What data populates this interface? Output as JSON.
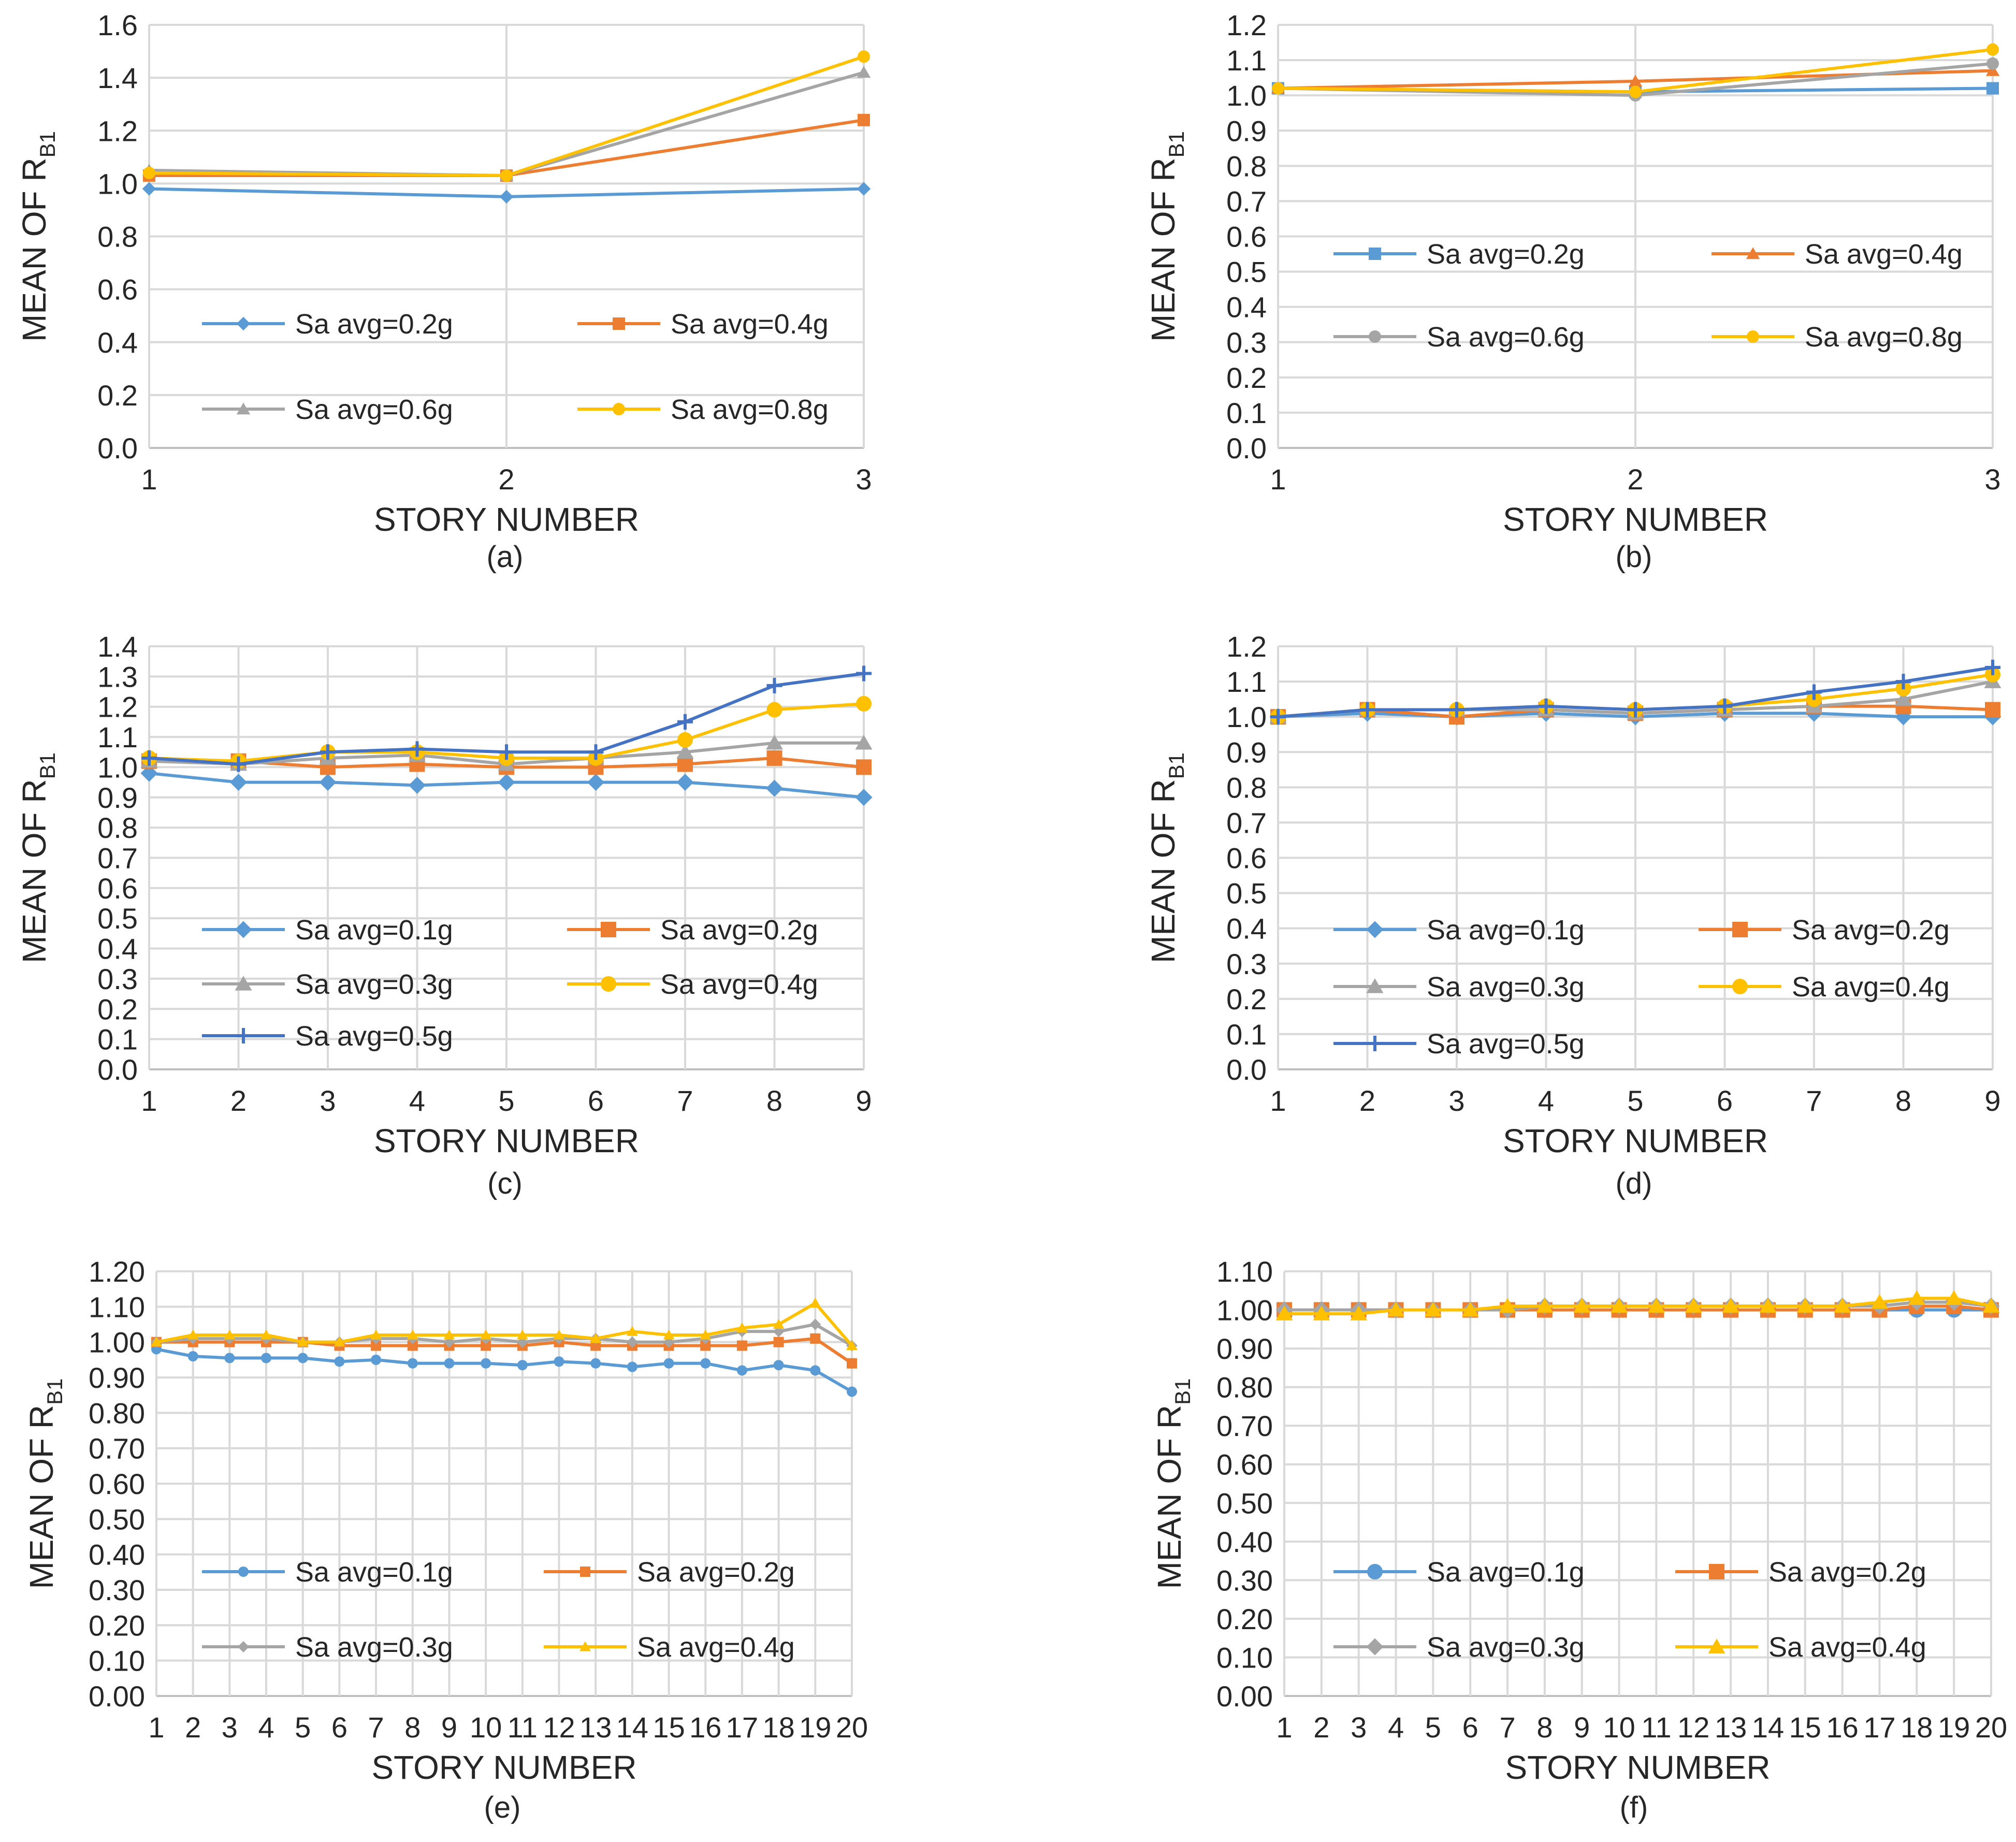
{
  "colors": {
    "blue": "#5b9bd5",
    "orange": "#ed7d31",
    "gray": "#a5a5a5",
    "yellow": "#ffc000",
    "darkblue": "#4472c4",
    "grid": "#d9d9d9",
    "text": "#262626"
  },
  "chart_data": [
    {
      "id": "a",
      "type": "line",
      "caption": "(a)",
      "xlabel": "STORY NUMBER",
      "ylabel": "MEAN OF R",
      "ylabel_sub": "B1",
      "x": [
        1,
        2,
        3
      ],
      "ylim": [
        0,
        1.6
      ],
      "ystep": 0.2,
      "ydecimals": 1,
      "series": [
        {
          "name": "Sa avg=0.2g",
          "color": "#5b9bd5",
          "marker": "diamond",
          "values": [
            0.98,
            0.95,
            0.98
          ]
        },
        {
          "name": "Sa avg=0.4g",
          "color": "#ed7d31",
          "marker": "square",
          "values": [
            1.03,
            1.03,
            1.24
          ]
        },
        {
          "name": "Sa avg=0.6g",
          "color": "#a5a5a5",
          "marker": "triangle",
          "values": [
            1.05,
            1.03,
            1.42
          ]
        },
        {
          "name": "Sa avg=0.8g",
          "color": "#ffc000",
          "marker": "circle",
          "values": [
            1.04,
            1.03,
            1.48
          ]
        }
      ]
    },
    {
      "id": "b",
      "type": "line",
      "caption": "(b)",
      "xlabel": "STORY NUMBER",
      "ylabel": "MEAN OF R",
      "ylabel_sub": "B1",
      "x": [
        1,
        2,
        3
      ],
      "ylim": [
        0,
        1.2
      ],
      "ystep": 0.1,
      "ydecimals": 1,
      "series": [
        {
          "name": "Sa avg=0.2g",
          "color": "#5b9bd5",
          "marker": "square",
          "values": [
            1.02,
            1.01,
            1.02
          ]
        },
        {
          "name": "Sa avg=0.4g",
          "color": "#ed7d31",
          "marker": "triangle",
          "values": [
            1.02,
            1.04,
            1.07
          ]
        },
        {
          "name": "Sa avg=0.6g",
          "color": "#a5a5a5",
          "marker": "circle",
          "values": [
            1.02,
            1.0,
            1.09
          ]
        },
        {
          "name": "Sa avg=0.8g",
          "color": "#ffc000",
          "marker": "circle",
          "values": [
            1.02,
            1.01,
            1.13
          ]
        }
      ]
    },
    {
      "id": "c",
      "type": "line",
      "caption": "(c)",
      "xlabel": "STORY NUMBER",
      "ylabel": "MEAN OF R",
      "ylabel_sub": "B1",
      "x": [
        1,
        2,
        3,
        4,
        5,
        6,
        7,
        8,
        9
      ],
      "ylim": [
        0,
        1.4
      ],
      "ystep": 0.1,
      "ydecimals": 1,
      "series": [
        {
          "name": "Sa avg=0.1g",
          "color": "#5b9bd5",
          "marker": "diamond",
          "values": [
            0.98,
            0.95,
            0.95,
            0.94,
            0.95,
            0.95,
            0.95,
            0.93,
            0.9
          ]
        },
        {
          "name": "Sa avg=0.2g",
          "color": "#ed7d31",
          "marker": "square",
          "values": [
            1.02,
            1.02,
            1.0,
            1.01,
            1.0,
            1.0,
            1.01,
            1.03,
            1.0
          ]
        },
        {
          "name": "Sa avg=0.3g",
          "color": "#a5a5a5",
          "marker": "triangle",
          "values": [
            1.02,
            1.01,
            1.03,
            1.04,
            1.01,
            1.03,
            1.05,
            1.08,
            1.08
          ]
        },
        {
          "name": "Sa avg=0.4g",
          "color": "#ffc000",
          "marker": "circle",
          "values": [
            1.03,
            1.02,
            1.05,
            1.05,
            1.03,
            1.03,
            1.09,
            1.19,
            1.21
          ]
        },
        {
          "name": "Sa avg=0.5g",
          "color": "#4472c4",
          "marker": "plus",
          "values": [
            1.03,
            1.01,
            1.05,
            1.06,
            1.05,
            1.05,
            1.15,
            1.27,
            1.31
          ]
        }
      ]
    },
    {
      "id": "d",
      "type": "line",
      "caption": "(d)",
      "xlabel": "STORY NUMBER",
      "ylabel": "MEAN OF R",
      "ylabel_sub": "B1",
      "x": [
        1,
        2,
        3,
        4,
        5,
        6,
        7,
        8,
        9
      ],
      "ylim": [
        0,
        1.2
      ],
      "ystep": 0.1,
      "ydecimals": 1,
      "series": [
        {
          "name": "Sa avg=0.1g",
          "color": "#5b9bd5",
          "marker": "diamond",
          "values": [
            1.0,
            1.01,
            1.0,
            1.01,
            1.0,
            1.01,
            1.01,
            1.0,
            1.0
          ]
        },
        {
          "name": "Sa avg=0.2g",
          "color": "#ed7d31",
          "marker": "square",
          "values": [
            1.0,
            1.02,
            1.0,
            1.02,
            1.01,
            1.02,
            1.03,
            1.03,
            1.02
          ]
        },
        {
          "name": "Sa avg=0.3g",
          "color": "#a5a5a5",
          "marker": "triangle",
          "values": [
            1.0,
            1.02,
            1.02,
            1.02,
            1.01,
            1.02,
            1.03,
            1.05,
            1.1
          ]
        },
        {
          "name": "Sa avg=0.4g",
          "color": "#ffc000",
          "marker": "circle",
          "values": [
            1.0,
            1.02,
            1.02,
            1.03,
            1.02,
            1.03,
            1.05,
            1.08,
            1.12
          ]
        },
        {
          "name": "Sa avg=0.5g",
          "color": "#4472c4",
          "marker": "plus",
          "values": [
            1.0,
            1.02,
            1.02,
            1.03,
            1.02,
            1.03,
            1.07,
            1.1,
            1.14
          ]
        }
      ]
    },
    {
      "id": "e",
      "type": "line",
      "caption": "(e)",
      "xlabel": "STORY NUMBER",
      "ylabel": "MEAN OF R",
      "ylabel_sub": "B1",
      "x": [
        1,
        2,
        3,
        4,
        5,
        6,
        7,
        8,
        9,
        10,
        11,
        12,
        13,
        14,
        15,
        16,
        17,
        18,
        19,
        20
      ],
      "ylim": [
        0,
        1.2
      ],
      "ystep": 0.1,
      "ydecimals": 2,
      "series": [
        {
          "name": "Sa avg=0.1g",
          "color": "#5b9bd5",
          "marker": "circle",
          "values": [
            0.98,
            0.96,
            0.955,
            0.955,
            0.955,
            0.945,
            0.95,
            0.94,
            0.94,
            0.94,
            0.935,
            0.945,
            0.94,
            0.93,
            0.94,
            0.94,
            0.92,
            0.935,
            0.92,
            0.86
          ]
        },
        {
          "name": "Sa avg=0.2g",
          "color": "#ed7d31",
          "marker": "square",
          "values": [
            1.0,
            1.0,
            1.0,
            1.0,
            1.0,
            0.99,
            0.99,
            0.99,
            0.99,
            0.99,
            0.99,
            1.0,
            0.99,
            0.99,
            0.99,
            0.99,
            0.99,
            1.0,
            1.01,
            0.94
          ]
        },
        {
          "name": "Sa avg=0.3g",
          "color": "#a5a5a5",
          "marker": "diamond",
          "values": [
            1.0,
            1.01,
            1.01,
            1.01,
            1.0,
            1.0,
            1.01,
            1.01,
            1.0,
            1.01,
            1.0,
            1.01,
            1.01,
            1.0,
            1.0,
            1.01,
            1.03,
            1.03,
            1.05,
            0.99
          ]
        },
        {
          "name": "Sa avg=0.4g",
          "color": "#ffc000",
          "marker": "triangle",
          "values": [
            1.0,
            1.02,
            1.02,
            1.02,
            1.0,
            1.0,
            1.02,
            1.02,
            1.02,
            1.02,
            1.02,
            1.02,
            1.01,
            1.03,
            1.02,
            1.02,
            1.04,
            1.05,
            1.11,
            0.99
          ]
        }
      ]
    },
    {
      "id": "f",
      "type": "line",
      "caption": "(f)",
      "xlabel": "STORY NUMBER",
      "ylabel": "MEAN OF R",
      "ylabel_sub": "B1",
      "x": [
        1,
        2,
        3,
        4,
        5,
        6,
        7,
        8,
        9,
        10,
        11,
        12,
        13,
        14,
        15,
        16,
        17,
        18,
        19,
        20
      ],
      "ylim": [
        0,
        1.1
      ],
      "ystep": 0.1,
      "ydecimals": 2,
      "series": [
        {
          "name": "Sa avg=0.1g",
          "color": "#5b9bd5",
          "marker": "circle",
          "values": [
            1.0,
            1.0,
            1.0,
            1.0,
            1.0,
            1.0,
            1.0,
            1.0,
            1.0,
            1.0,
            1.0,
            1.0,
            1.0,
            1.0,
            1.0,
            1.0,
            1.0,
            1.0,
            1.0,
            1.0
          ]
        },
        {
          "name": "Sa avg=0.2g",
          "color": "#ed7d31",
          "marker": "square",
          "values": [
            1.0,
            1.0,
            1.0,
            1.0,
            1.0,
            1.0,
            1.0,
            1.0,
            1.0,
            1.0,
            1.0,
            1.0,
            1.0,
            1.0,
            1.0,
            1.0,
            1.0,
            1.01,
            1.01,
            1.0
          ]
        },
        {
          "name": "Sa avg=0.3g",
          "color": "#a5a5a5",
          "marker": "diamond",
          "values": [
            1.0,
            1.0,
            1.0,
            1.0,
            1.0,
            1.0,
            1.0,
            1.01,
            1.01,
            1.01,
            1.01,
            1.01,
            1.01,
            1.01,
            1.01,
            1.01,
            1.01,
            1.02,
            1.02,
            1.01
          ]
        },
        {
          "name": "Sa avg=0.4g",
          "color": "#ffc000",
          "marker": "triangle",
          "values": [
            0.99,
            0.99,
            0.99,
            1.0,
            1.0,
            1.0,
            1.01,
            1.01,
            1.01,
            1.01,
            1.01,
            1.01,
            1.01,
            1.01,
            1.01,
            1.01,
            1.02,
            1.03,
            1.03,
            1.01
          ]
        }
      ]
    }
  ]
}
